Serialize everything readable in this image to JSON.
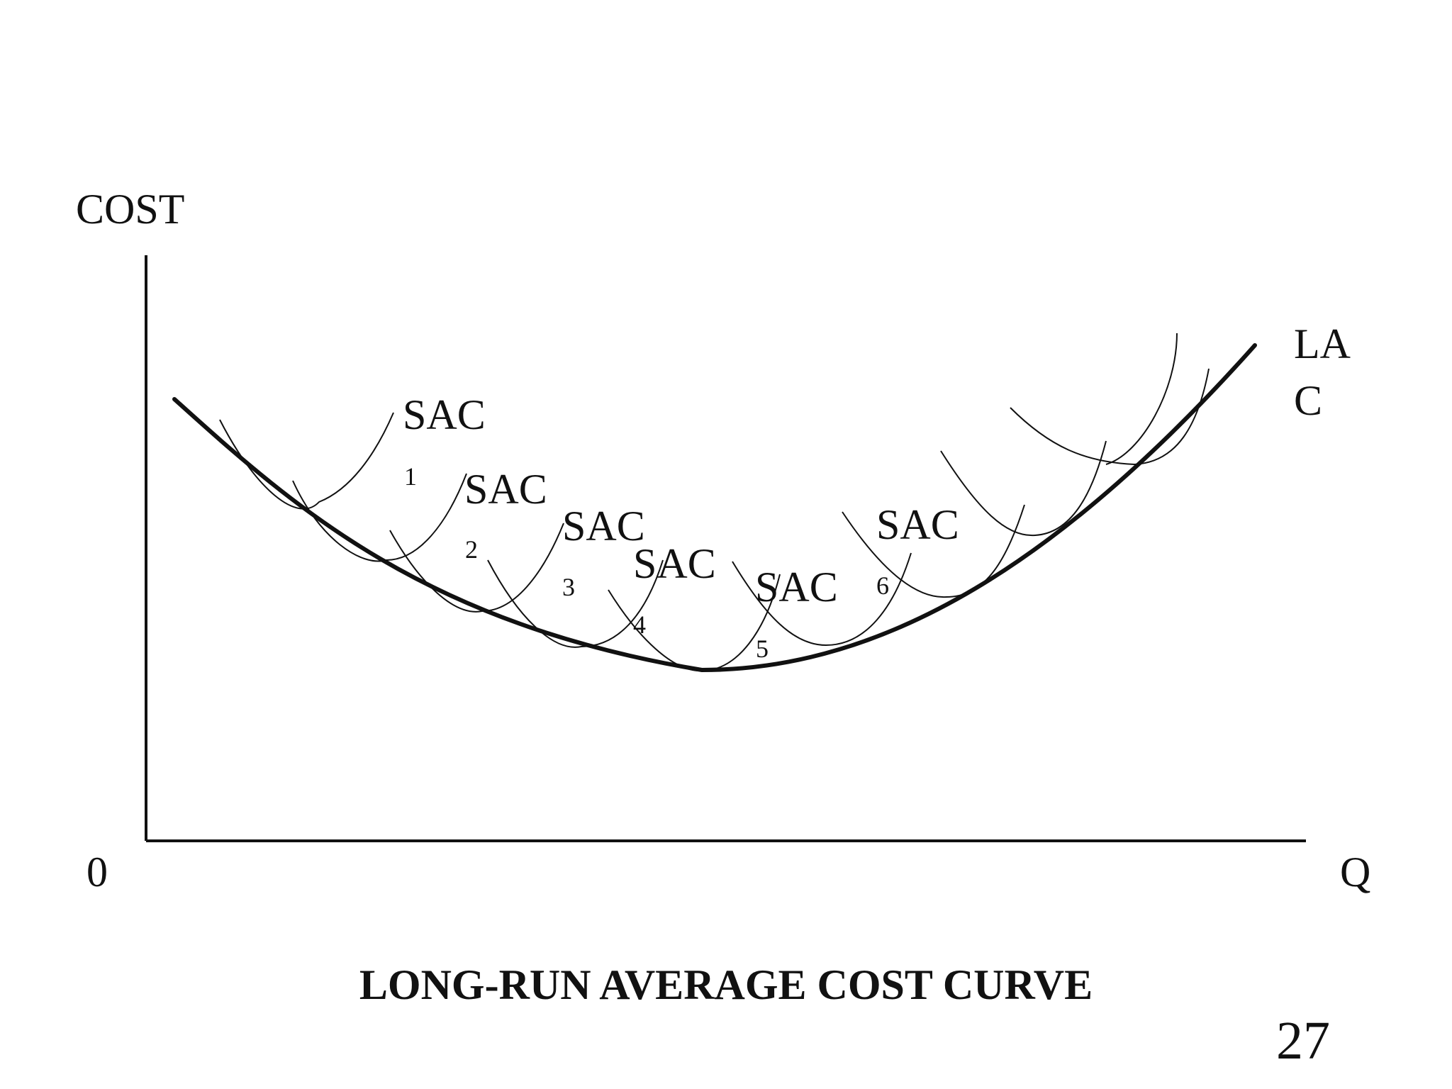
{
  "axes": {
    "y_label": "COST",
    "x_label": "Q",
    "origin_label": "0"
  },
  "curves": {
    "lac_label_line1": "LA",
    "lac_label_line2": "C",
    "sac": [
      {
        "name": "SAC",
        "index": "1"
      },
      {
        "name": "SAC",
        "index": "2"
      },
      {
        "name": "SAC",
        "index": "3"
      },
      {
        "name": "SAC",
        "index": "4"
      },
      {
        "name": "SAC",
        "index": "5"
      },
      {
        "name": "SAC",
        "index": "6"
      }
    ]
  },
  "title": "LONG-RUN AVERAGE COST CURVE",
  "page_number": "27"
}
